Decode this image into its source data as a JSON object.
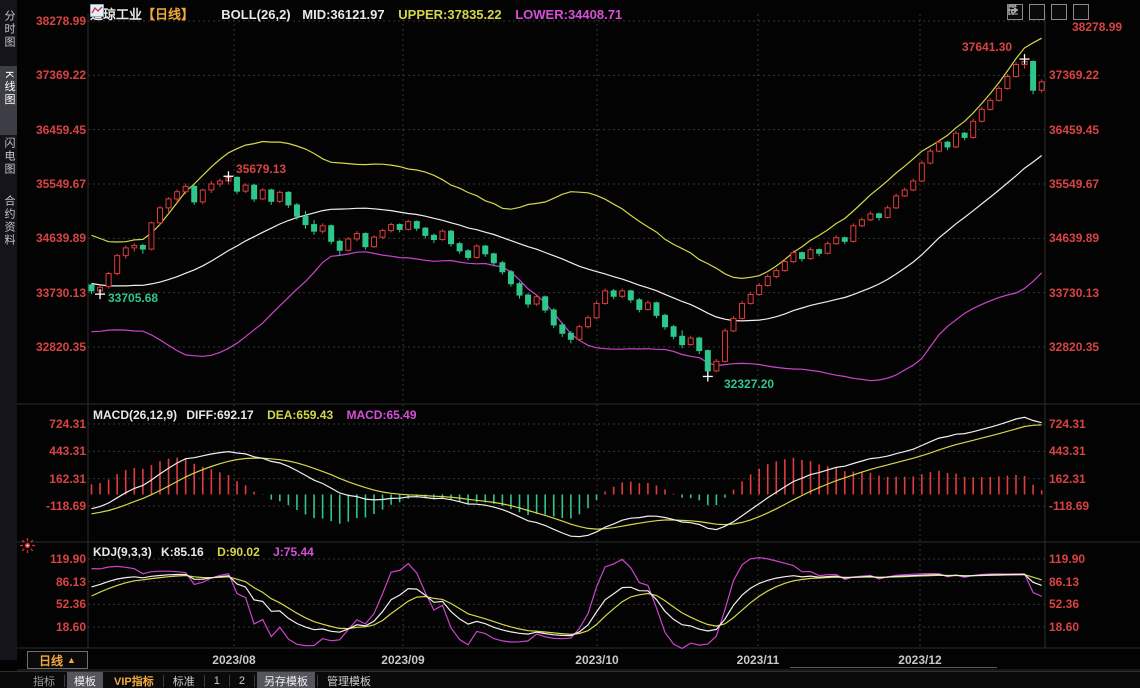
{
  "header": {
    "symbol": "道琼工业",
    "period_tag": "【日线】",
    "boll_label": "BOLL(26,2)",
    "mid_label": "MID:36121.97",
    "upper_label": "UPPER:37835.22",
    "lower_label": "LOWER:34408.71"
  },
  "top_icons": [
    {
      "name": "crosshair-icon"
    },
    {
      "name": "compress-axis-left-icon"
    },
    {
      "name": "compress-axis-right-icon"
    },
    {
      "name": "shift-right-icon"
    }
  ],
  "sidebar": {
    "tabs": [
      {
        "label": "分时图",
        "active": false
      },
      {
        "label": "K线图",
        "active": true
      },
      {
        "label": "闪电图",
        "active": false
      },
      {
        "label": "合约资料",
        "active": false
      }
    ]
  },
  "macd_header": {
    "title": "MACD(26,12,9)",
    "diff_label": "DIFF:692.17",
    "dea_label": "DEA:659.43",
    "macd_label": "MACD:65.49"
  },
  "kdj_header": {
    "title": "KDJ(9,3,3)",
    "k_label": "K:85.16",
    "d_label": "D:90.02",
    "j_label": "J:75.44"
  },
  "bottom_bar": {
    "period_label": "日线",
    "period_arrow": "▲",
    "items": [
      {
        "label": "指标"
      },
      {
        "label": "模板"
      },
      {
        "label": "VIP指标"
      },
      {
        "label": "标准"
      },
      {
        "label": "1"
      },
      {
        "label": "2"
      },
      {
        "label": "另存模板"
      },
      {
        "label": "管理模板"
      }
    ]
  },
  "chart_data": {
    "type": "candlestick",
    "title": "道琼工业 日线 K线图 with BOLL(26,2), MACD(26,12,9), KDJ(9,3,3)",
    "x_axis": {
      "labels": [
        "2023/08",
        "2023/09",
        "2023/10",
        "2023/11",
        "2023/12"
      ]
    },
    "main_axis_labels": [
      "38278.99",
      "37369.22",
      "36459.45",
      "35549.67",
      "34639.89",
      "33730.13",
      "32820.35"
    ],
    "macd_axis_labels": [
      "724.31",
      "443.31",
      "162.31",
      "-118.69"
    ],
    "kdj_axis_labels": [
      "119.90",
      "86.13",
      "52.36",
      "18.60"
    ],
    "annotations": [
      {
        "text": "35679.13",
        "kind": "high"
      },
      {
        "text": "33705.68",
        "kind": "low"
      },
      {
        "text": "37641.30",
        "kind": "high"
      },
      {
        "text": "32327.20",
        "kind": "low"
      }
    ],
    "indicators": {
      "boll": {
        "period": 26,
        "mult": 2
      },
      "macd": {
        "fast": 12,
        "slow": 26,
        "signal": 9
      },
      "kdj": {
        "n": 9
      }
    },
    "colors": {
      "up": "#e23b3b",
      "down": "#2fc68b",
      "mid_line": "#efefef",
      "upper_line": "#d6d64a",
      "lower_line": "#cc44cc",
      "diff_line": "#efefef",
      "dea_line": "#d6d64a",
      "j_line": "#cc44cc",
      "axis_text": "#d94343",
      "grid": "#363636"
    },
    "visible_start_index": 26,
    "candles": [
      [
        34400,
        34480,
        34330,
        34440
      ],
      [
        34440,
        34500,
        34360,
        34420
      ],
      [
        34420,
        34530,
        34380,
        34490
      ],
      [
        34490,
        34520,
        34340,
        34380
      ],
      [
        34380,
        34490,
        34330,
        34450
      ],
      [
        34450,
        34480,
        34290,
        34330
      ],
      [
        34330,
        34450,
        34300,
        34410
      ],
      [
        34410,
        34430,
        34240,
        34290
      ],
      [
        34290,
        34400,
        34230,
        34360
      ],
      [
        34360,
        34380,
        34150,
        34200
      ],
      [
        34200,
        34300,
        34100,
        34150
      ],
      [
        34150,
        34180,
        33940,
        33990
      ],
      [
        33990,
        34020,
        33780,
        33830
      ],
      [
        33830,
        33860,
        33600,
        33660
      ],
      [
        33660,
        33690,
        33440,
        33500
      ],
      [
        33500,
        33540,
        33300,
        33360
      ],
      [
        33360,
        33420,
        33250,
        33310
      ],
      [
        33310,
        33470,
        33280,
        33430
      ],
      [
        33430,
        33460,
        33290,
        33340
      ],
      [
        33340,
        33500,
        33310,
        33460
      ],
      [
        33460,
        33590,
        33430,
        33550
      ],
      [
        33550,
        33580,
        33400,
        33450
      ],
      [
        33450,
        33620,
        33420,
        33580
      ],
      [
        33580,
        33720,
        33550,
        33680
      ],
      [
        33680,
        33800,
        33650,
        33760
      ],
      [
        33760,
        33880,
        33720,
        33840
      ],
      [
        33860,
        33880,
        33710,
        33760
      ],
      [
        33760,
        33850,
        33705.68,
        33820
      ],
      [
        33830,
        34080,
        33800,
        34050
      ],
      [
        34050,
        34380,
        34020,
        34350
      ],
      [
        34350,
        34520,
        34300,
        34480
      ],
      [
        34480,
        34560,
        34420,
        34520
      ],
      [
        34520,
        34550,
        34380,
        34460
      ],
      [
        34460,
        34920,
        34440,
        34900
      ],
      [
        34900,
        35180,
        34860,
        35150
      ],
      [
        35150,
        35330,
        35080,
        35300
      ],
      [
        35300,
        35460,
        35240,
        35420
      ],
      [
        35420,
        35560,
        35380,
        35510
      ],
      [
        35510,
        35540,
        35200,
        35250
      ],
      [
        35250,
        35470,
        35210,
        35450
      ],
      [
        35450,
        35600,
        35400,
        35550
      ],
      [
        35550,
        35640,
        35500,
        35600
      ],
      [
        35600,
        35679.13,
        35540,
        35660
      ],
      [
        35660,
        35680,
        35380,
        35430
      ],
      [
        35430,
        35560,
        35400,
        35530
      ],
      [
        35530,
        35550,
        35250,
        35300
      ],
      [
        35300,
        35480,
        35280,
        35450
      ],
      [
        35450,
        35470,
        35200,
        35260
      ],
      [
        35260,
        35440,
        35230,
        35410
      ],
      [
        35410,
        35430,
        35150,
        35200
      ],
      [
        35200,
        35230,
        34950,
        35010
      ],
      [
        35010,
        35100,
        34800,
        34870
      ],
      [
        34870,
        34950,
        34700,
        34760
      ],
      [
        34760,
        34890,
        34720,
        34850
      ],
      [
        34850,
        34870,
        34540,
        34590
      ],
      [
        34590,
        34620,
        34350,
        34440
      ],
      [
        34440,
        34660,
        34420,
        34630
      ],
      [
        34630,
        34760,
        34590,
        34720
      ],
      [
        34720,
        34740,
        34450,
        34500
      ],
      [
        34500,
        34690,
        34480,
        34660
      ],
      [
        34660,
        34800,
        34630,
        34770
      ],
      [
        34770,
        34900,
        34740,
        34870
      ],
      [
        34870,
        34890,
        34740,
        34790
      ],
      [
        34790,
        34950,
        34770,
        34920
      ],
      [
        34920,
        34940,
        34760,
        34810
      ],
      [
        34810,
        34830,
        34640,
        34690
      ],
      [
        34690,
        34720,
        34560,
        34620
      ],
      [
        34620,
        34790,
        34600,
        34760
      ],
      [
        34760,
        34780,
        34500,
        34550
      ],
      [
        34550,
        34580,
        34380,
        34430
      ],
      [
        34430,
        34460,
        34270,
        34320
      ],
      [
        34320,
        34540,
        34300,
        34510
      ],
      [
        34510,
        34530,
        34330,
        34380
      ],
      [
        34380,
        34400,
        34180,
        34230
      ],
      [
        34230,
        34260,
        34030,
        34080
      ],
      [
        34080,
        34110,
        33830,
        33880
      ],
      [
        33880,
        33910,
        33630,
        33690
      ],
      [
        33690,
        33720,
        33480,
        33540
      ],
      [
        33540,
        33700,
        33510,
        33660
      ],
      [
        33660,
        33680,
        33390,
        33440
      ],
      [
        33440,
        33470,
        33140,
        33190
      ],
      [
        33190,
        33230,
        32990,
        33050
      ],
      [
        33050,
        33090,
        32880,
        32950
      ],
      [
        32950,
        33190,
        32930,
        33160
      ],
      [
        33160,
        33350,
        33130,
        33310
      ],
      [
        33310,
        33590,
        33290,
        33550
      ],
      [
        33550,
        33800,
        33530,
        33760
      ],
      [
        33760,
        33790,
        33620,
        33670
      ],
      [
        33670,
        33800,
        33640,
        33760
      ],
      [
        33760,
        33780,
        33560,
        33610
      ],
      [
        33610,
        33640,
        33400,
        33450
      ],
      [
        33450,
        33600,
        33430,
        33560
      ],
      [
        33560,
        33580,
        33300,
        33350
      ],
      [
        33350,
        33380,
        33110,
        33160
      ],
      [
        33160,
        33190,
        32950,
        33000
      ],
      [
        33000,
        33100,
        32800,
        32860
      ],
      [
        32860,
        33010,
        32840,
        32970
      ],
      [
        32970,
        32990,
        32700,
        32760
      ],
      [
        32760,
        32780,
        32327.2,
        32420
      ],
      [
        32420,
        32620,
        32400,
        32580
      ],
      [
        32580,
        33130,
        32560,
        33090
      ],
      [
        33090,
        33340,
        33070,
        33300
      ],
      [
        33300,
        33590,
        33280,
        33550
      ],
      [
        33550,
        33740,
        33530,
        33700
      ],
      [
        33700,
        33890,
        33680,
        33850
      ],
      [
        33850,
        34040,
        33830,
        34000
      ],
      [
        34000,
        34140,
        33970,
        34100
      ],
      [
        34100,
        34290,
        34080,
        34250
      ],
      [
        34250,
        34440,
        34230,
        34400
      ],
      [
        34400,
        34420,
        34250,
        34300
      ],
      [
        34300,
        34490,
        34280,
        34450
      ],
      [
        34450,
        34470,
        34340,
        34390
      ],
      [
        34390,
        34590,
        34370,
        34550
      ],
      [
        34550,
        34690,
        34530,
        34650
      ],
      [
        34650,
        34670,
        34540,
        34590
      ],
      [
        34590,
        34890,
        34570,
        34850
      ],
      [
        34850,
        34990,
        34830,
        34950
      ],
      [
        34950,
        35090,
        34930,
        35050
      ],
      [
        35050,
        35070,
        34940,
        34990
      ],
      [
        34990,
        35190,
        34970,
        35150
      ],
      [
        35150,
        35390,
        35130,
        35350
      ],
      [
        35350,
        35490,
        35330,
        35450
      ],
      [
        35450,
        35640,
        35430,
        35600
      ],
      [
        35600,
        35940,
        35580,
        35900
      ],
      [
        35900,
        36140,
        35880,
        36100
      ],
      [
        36100,
        36290,
        36080,
        36250
      ],
      [
        36250,
        36270,
        36120,
        36170
      ],
      [
        36170,
        36440,
        36150,
        36400
      ],
      [
        36400,
        36420,
        36280,
        36330
      ],
      [
        36330,
        36640,
        36310,
        36600
      ],
      [
        36600,
        36840,
        36580,
        36800
      ],
      [
        36800,
        36990,
        36780,
        36950
      ],
      [
        36950,
        37190,
        36930,
        37150
      ],
      [
        37150,
        37390,
        37130,
        37350
      ],
      [
        37350,
        37590,
        37330,
        37550
      ],
      [
        37550,
        37641.3,
        37480,
        37600
      ],
      [
        37600,
        37620,
        37050,
        37120
      ],
      [
        37120,
        37300,
        37080,
        37260
      ]
    ]
  }
}
